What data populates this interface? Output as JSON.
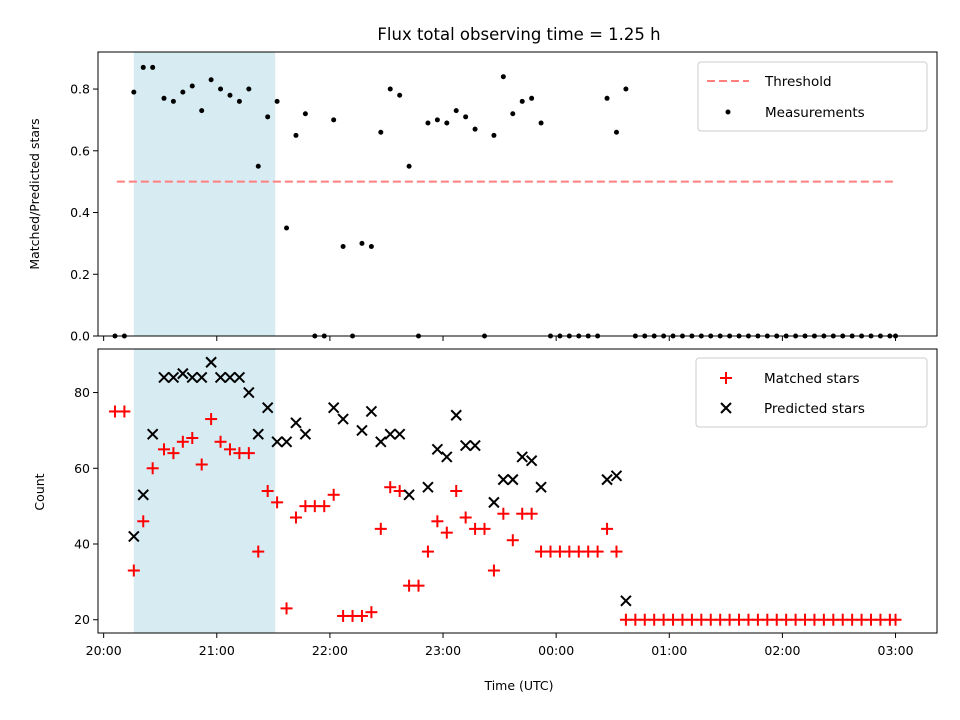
{
  "chart_data": [
    {
      "type": "scatter",
      "title": "Flux total observing time = 1.25 h",
      "xlabel": "",
      "ylabel": "Matched/Predicted stars",
      "xlim": [
        "19:57",
        "03:22"
      ],
      "ylim": [
        0,
        0.92
      ],
      "yticks": [
        "0.0",
        "0.2",
        "0.4",
        "0.6",
        "0.8"
      ],
      "shaded_region": {
        "from": "20:16",
        "to": "21:31",
        "color": "#add8e6"
      },
      "legend_position": "upper right",
      "threshold": {
        "name": "Threshold",
        "value": 0.5,
        "from": "20:07",
        "to": "03:00",
        "color": "#ff7f7f",
        "style": "dashed"
      },
      "series": [
        {
          "name": "Measurements",
          "color": "#000000",
          "x": [
            "20:06",
            "20:11",
            "20:16",
            "20:21",
            "20:26",
            "20:32",
            "20:37",
            "20:42",
            "20:47",
            "20:52",
            "20:57",
            "21:02",
            "21:07",
            "21:12",
            "21:17",
            "21:22",
            "21:27",
            "21:32",
            "21:37",
            "21:42",
            "21:47",
            "21:52",
            "21:57",
            "22:02",
            "22:07",
            "22:12",
            "22:17",
            "22:22",
            "22:27",
            "22:32",
            "22:37",
            "22:42",
            "22:47",
            "22:52",
            "22:57",
            "23:02",
            "23:07",
            "23:12",
            "23:17",
            "23:22",
            "23:27",
            "23:32",
            "23:37",
            "23:42",
            "23:47",
            "23:52",
            "23:57",
            "00:02",
            "00:07",
            "00:12",
            "00:17",
            "00:22",
            "00:27",
            "00:32",
            "00:37",
            "00:42",
            "00:47",
            "00:52",
            "00:57",
            "01:02",
            "01:07",
            "01:12",
            "01:17",
            "01:22",
            "01:27",
            "01:32",
            "01:37",
            "01:42",
            "01:47",
            "01:52",
            "01:57",
            "02:02",
            "02:07",
            "02:12",
            "02:17",
            "02:22",
            "02:27",
            "02:32",
            "02:37",
            "02:42",
            "02:47",
            "02:52",
            "02:57",
            "03:00"
          ],
          "y": [
            0.0,
            0.0,
            0.79,
            0.87,
            0.87,
            0.77,
            0.76,
            0.79,
            0.81,
            0.73,
            0.83,
            0.8,
            0.78,
            0.76,
            0.8,
            0.55,
            0.71,
            0.76,
            0.35,
            0.65,
            0.72,
            0.0,
            0.0,
            0.7,
            0.29,
            0.0,
            0.3,
            0.29,
            0.66,
            0.8,
            0.78,
            0.55,
            0.0,
            0.69,
            0.7,
            0.69,
            0.73,
            0.71,
            0.67,
            0.0,
            0.65,
            0.84,
            0.72,
            0.76,
            0.77,
            0.69,
            0.0,
            0.0,
            0.0,
            0.0,
            0.0,
            0.0,
            0.77,
            0.66,
            0.8,
            0.0,
            0.0,
            0.0,
            0.0,
            0.0,
            0.0,
            0.0,
            0.0,
            0.0,
            0.0,
            0.0,
            0.0,
            0.0,
            0.0,
            0.0,
            0.0,
            0.0,
            0.0,
            0.0,
            0.0,
            0.0,
            0.0,
            0.0,
            0.0,
            0.0,
            0.0,
            0.0,
            0.0,
            0.0
          ]
        }
      ]
    },
    {
      "type": "scatter",
      "title": "",
      "xlabel": "Time (UTC)",
      "ylabel": "Count",
      "xlim": [
        "19:57",
        "03:22"
      ],
      "ylim": [
        16.5,
        91.5
      ],
      "yticks": [
        "20",
        "40",
        "60",
        "80"
      ],
      "xticks": [
        "20:00",
        "21:00",
        "22:00",
        "23:00",
        "00:00",
        "01:00",
        "02:00",
        "03:00"
      ],
      "shaded_region": {
        "from": "20:16",
        "to": "21:31",
        "color": "#add8e6"
      },
      "legend_position": "upper right",
      "series": [
        {
          "name": "Matched stars",
          "marker": "plus",
          "color": "#ff0000",
          "x": [
            "20:06",
            "20:11",
            "20:16",
            "20:21",
            "20:26",
            "20:32",
            "20:37",
            "20:42",
            "20:47",
            "20:52",
            "20:57",
            "21:02",
            "21:07",
            "21:12",
            "21:17",
            "21:22",
            "21:27",
            "21:32",
            "21:37",
            "21:42",
            "21:47",
            "21:52",
            "21:57",
            "22:02",
            "22:07",
            "22:12",
            "22:17",
            "22:22",
            "22:27",
            "22:32",
            "22:37",
            "22:42",
            "22:47",
            "22:52",
            "22:57",
            "23:02",
            "23:07",
            "23:12",
            "23:17",
            "23:22",
            "23:27",
            "23:32",
            "23:37",
            "23:42",
            "23:47",
            "23:52",
            "23:57",
            "00:02",
            "00:07",
            "00:12",
            "00:17",
            "00:22",
            "00:27",
            "00:32",
            "00:37",
            "00:42",
            "00:47",
            "00:52",
            "00:57",
            "01:02",
            "01:07",
            "01:12",
            "01:17",
            "01:22",
            "01:27",
            "01:32",
            "01:37",
            "01:42",
            "01:47",
            "01:52",
            "01:57",
            "02:02",
            "02:07",
            "02:12",
            "02:17",
            "02:22",
            "02:27",
            "02:32",
            "02:37",
            "02:42",
            "02:47",
            "02:52",
            "02:57",
            "03:00"
          ],
          "y": [
            75,
            75,
            33,
            46,
            60,
            65,
            64,
            67,
            68,
            61,
            73,
            67,
            65,
            64,
            64,
            38,
            54,
            51,
            23,
            47,
            50,
            50,
            50,
            53,
            21,
            21,
            21,
            22,
            44,
            55,
            54,
            29,
            29,
            38,
            46,
            43,
            54,
            47,
            44,
            44,
            33,
            48,
            41,
            48,
            48,
            38,
            38,
            38,
            38,
            38,
            38,
            38,
            44,
            38,
            20,
            20,
            20,
            20,
            20,
            20,
            20,
            20,
            20,
            20,
            20,
            20,
            20,
            20,
            20,
            20,
            20,
            20,
            20,
            20,
            20,
            20,
            20,
            20,
            20,
            20,
            20,
            20,
            20,
            20
          ]
        },
        {
          "name": "Predicted stars",
          "marker": "x",
          "color": "#000000",
          "x": [
            "20:16",
            "20:21",
            "20:26",
            "20:32",
            "20:37",
            "20:42",
            "20:47",
            "20:52",
            "20:57",
            "21:02",
            "21:07",
            "21:12",
            "21:17",
            "21:22",
            "21:27",
            "21:32",
            "21:37",
            "21:42",
            "21:47",
            "22:02",
            "22:07",
            "22:17",
            "22:22",
            "22:27",
            "22:32",
            "22:37",
            "22:42",
            "22:52",
            "22:57",
            "23:02",
            "23:07",
            "23:12",
            "23:17",
            "23:27",
            "23:32",
            "23:37",
            "23:42",
            "23:47",
            "23:52",
            "00:27",
            "00:32",
            "00:37"
          ],
          "y": [
            42,
            53,
            69,
            84,
            84,
            85,
            84,
            84,
            88,
            84,
            84,
            84,
            80,
            69,
            76,
            67,
            67,
            72,
            69,
            76,
            73,
            70,
            75,
            67,
            69,
            69,
            53,
            55,
            65,
            63,
            74,
            66,
            66,
            51,
            57,
            57,
            63,
            62,
            55,
            57,
            58,
            25
          ]
        }
      ]
    }
  ]
}
